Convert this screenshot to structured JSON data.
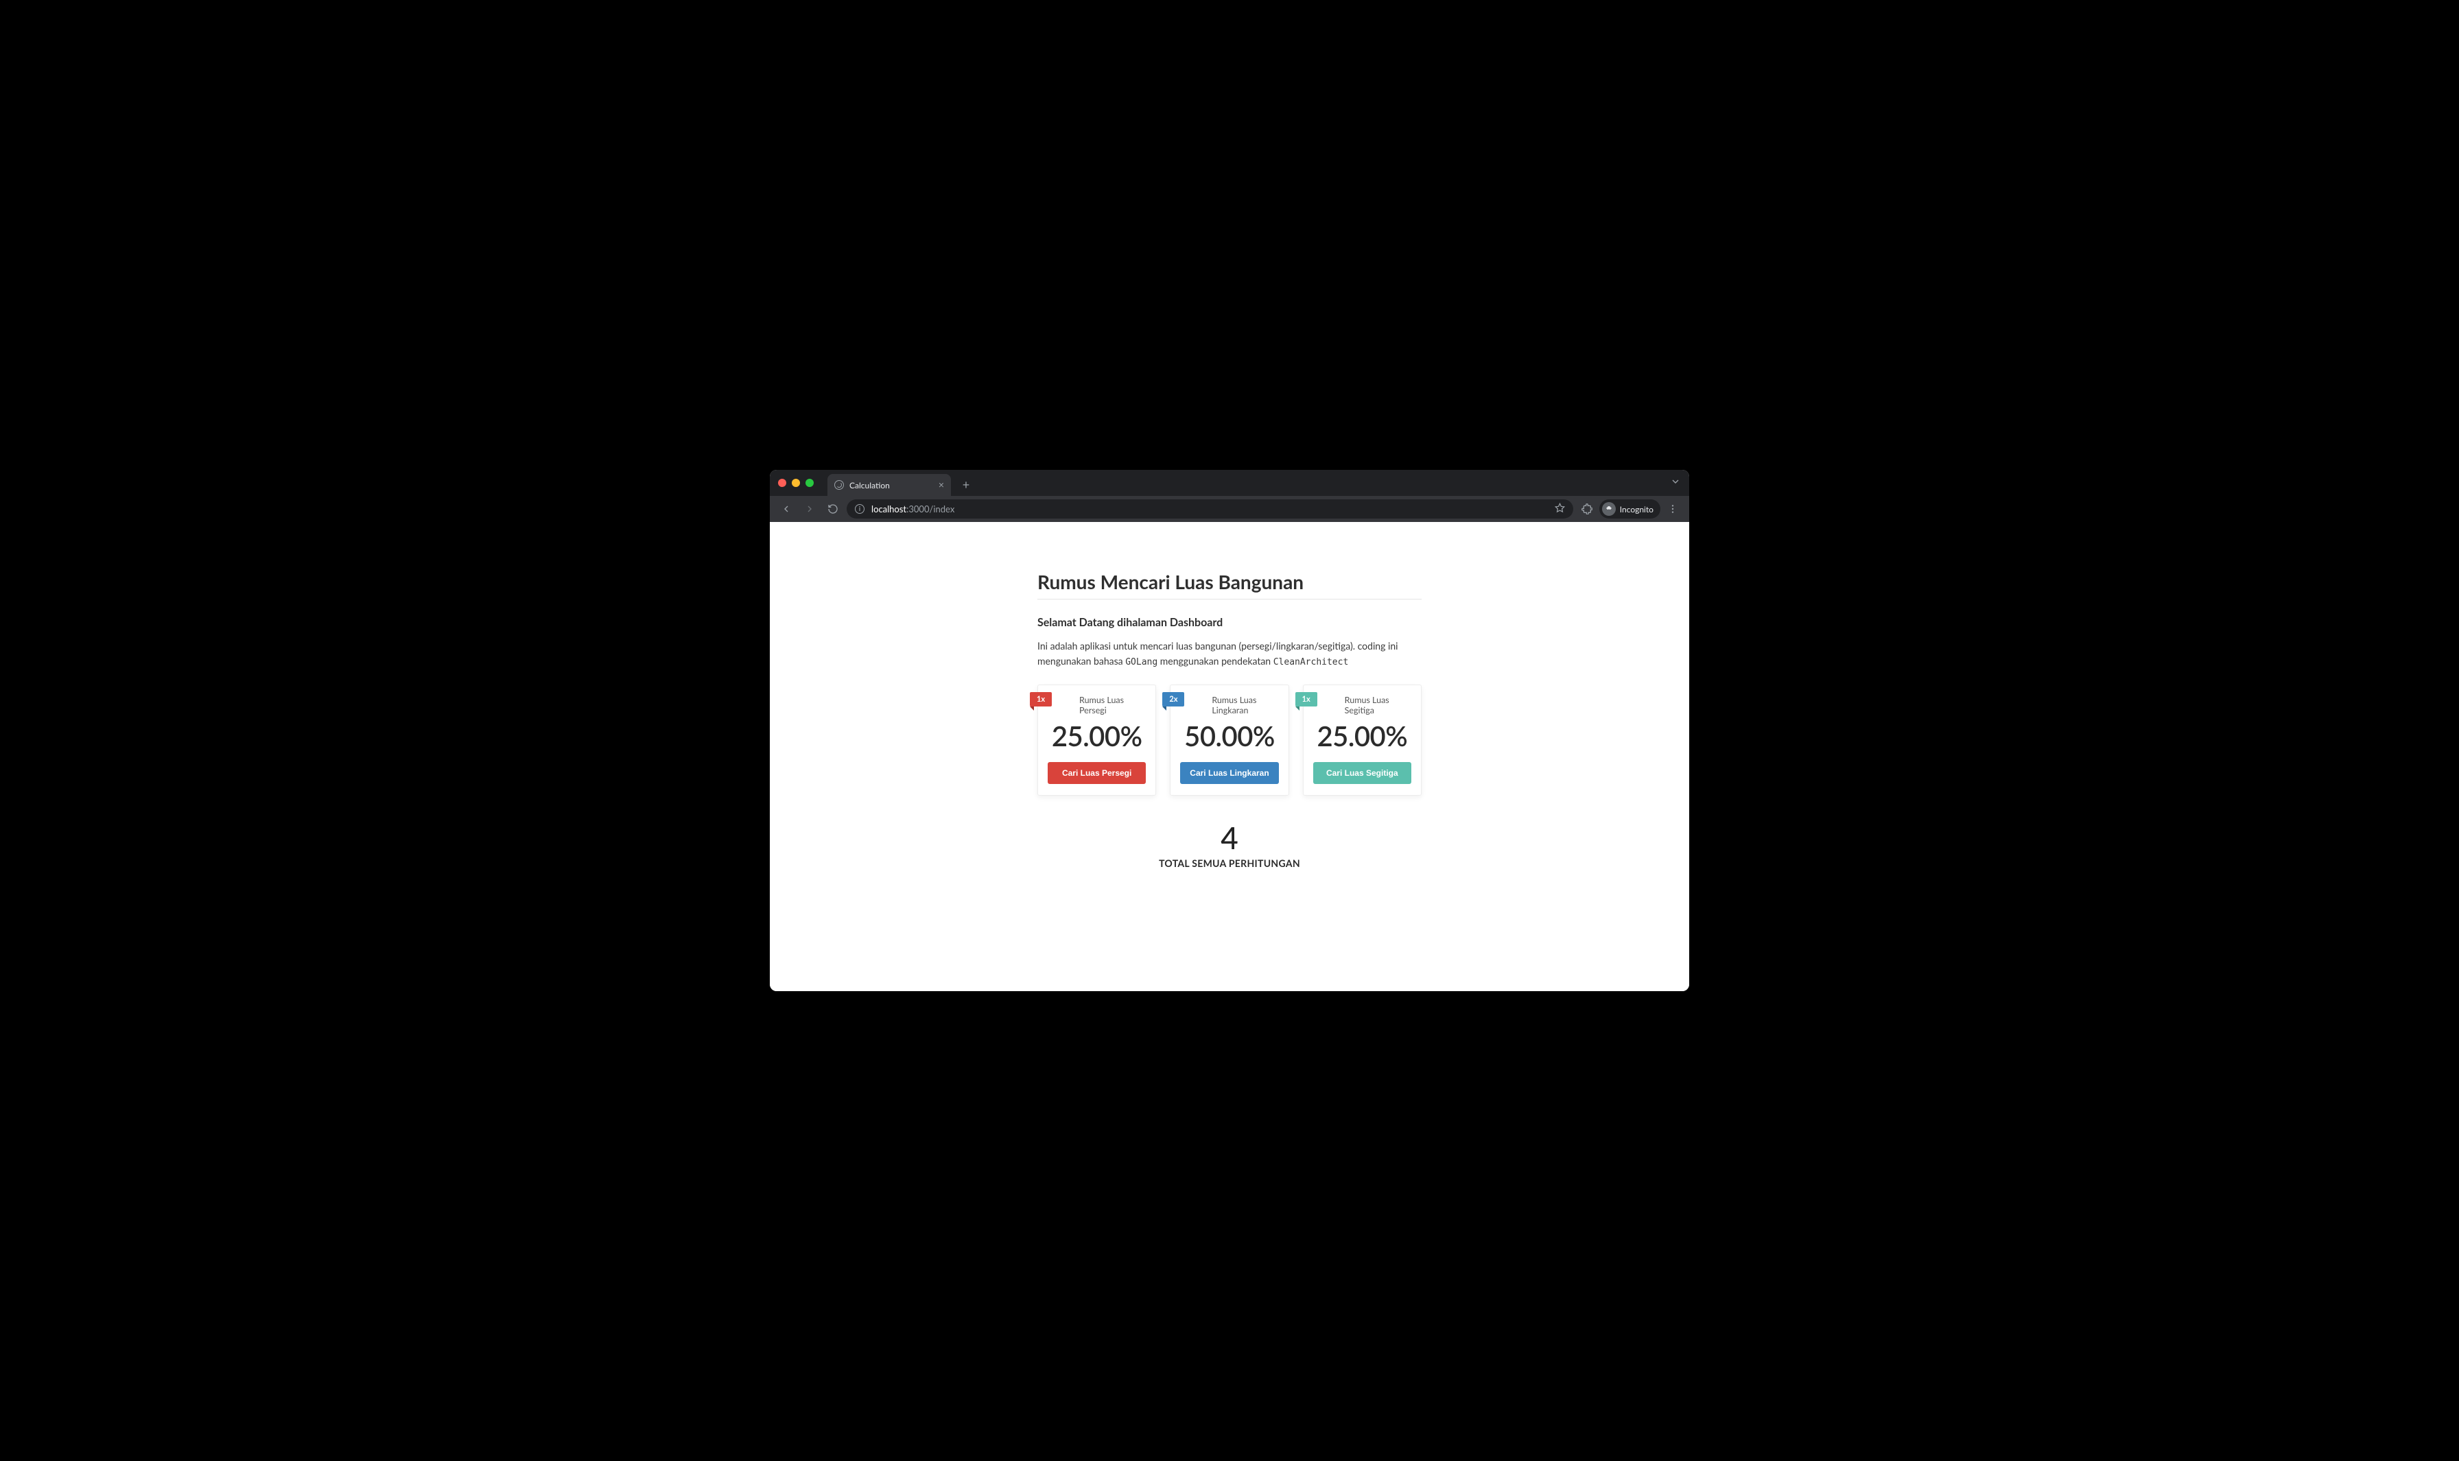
{
  "browser": {
    "tab_title": "Calculation",
    "url_host": "localhost",
    "url_rest": ":3000/index",
    "incognito_label": "Incognito"
  },
  "page": {
    "title": "Rumus Mencari Luas Bangunan",
    "subtitle": "Selamat Datang dihalaman Dashboard",
    "intro_pre": "Ini adalah aplikasi untuk mencari luas bangunan (persegi/lingkaran/segitiga). coding ini mengunakan bahasa ",
    "intro_code1": "GOLang",
    "intro_mid": " menggunakan pendekatan ",
    "intro_code2": "CleanArchitect"
  },
  "cards": [
    {
      "ribbon": "1x",
      "label": "Rumus Luas Persegi",
      "percent": "25.00%",
      "button": "Cari Luas Persegi",
      "color": "#d9433b",
      "color_dark": "#a3322c"
    },
    {
      "ribbon": "2x",
      "label": "Rumus Luas Lingkaran",
      "percent": "50.00%",
      "button": "Cari Luas Lingkaran",
      "color": "#3b83c0",
      "color_dark": "#2c6390"
    },
    {
      "ribbon": "1x",
      "label": "Rumus Luas Segitiga",
      "percent": "25.00%",
      "button": "Cari Luas Segitiga",
      "color": "#5bbfad",
      "color_dark": "#3f8e80"
    }
  ],
  "total": {
    "number": "4",
    "label": "TOTAL SEMUA PERHITUNGAN"
  },
  "colors": {
    "chrome_bg": "#202124",
    "chrome_toolbar": "#35363a",
    "page_bg": "#ffffff",
    "text": "#2f2f2f"
  }
}
